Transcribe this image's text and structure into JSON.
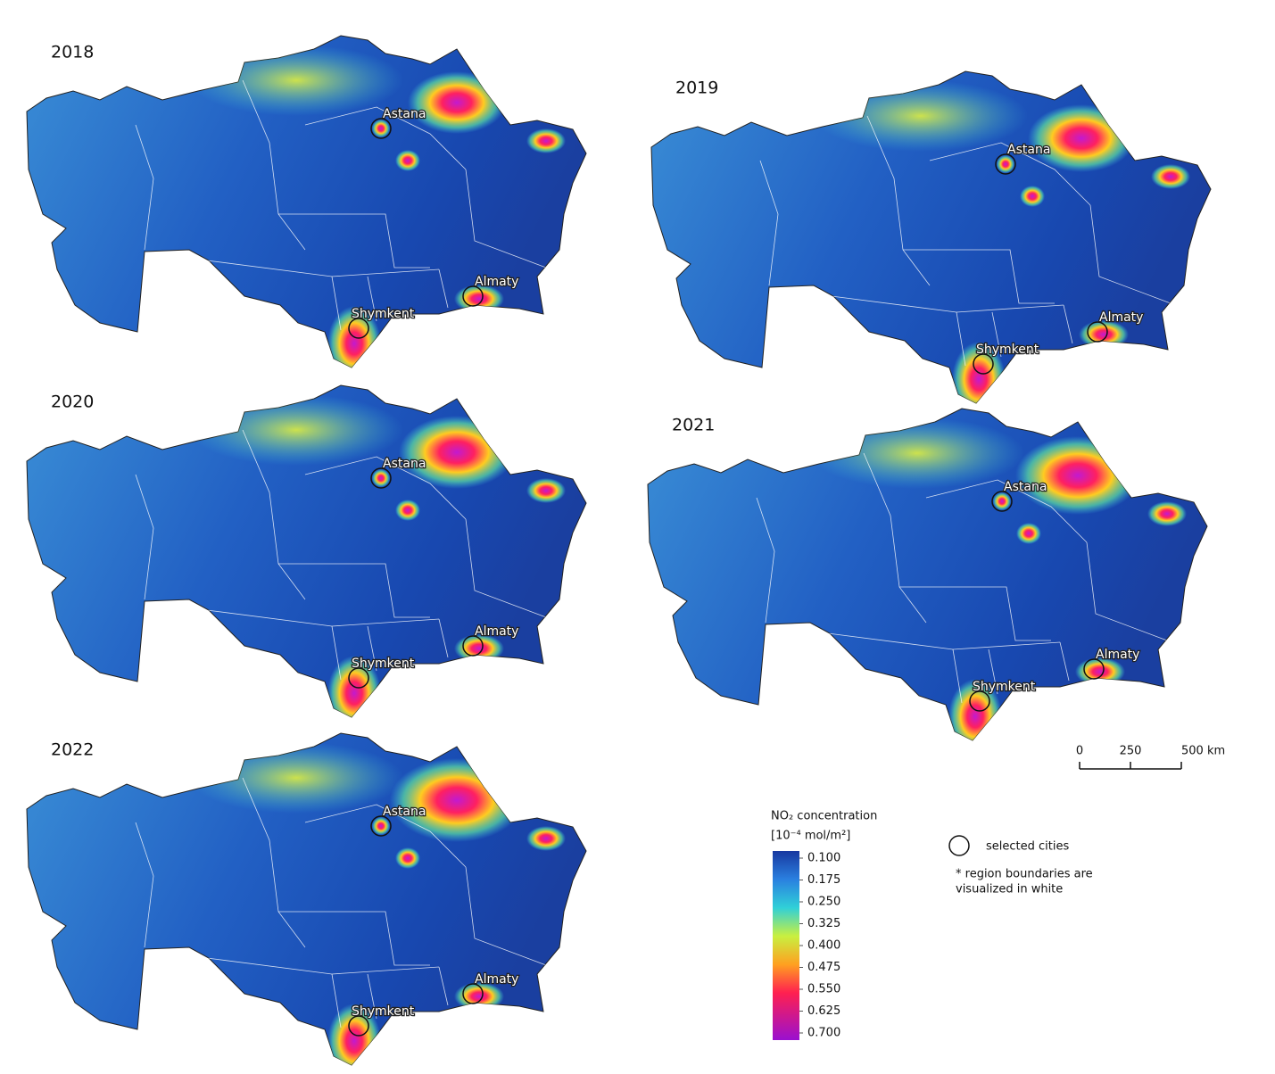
{
  "maps": [
    {
      "year": "2018",
      "cities": [
        "Astana",
        "Almaty",
        "Shymkent"
      ]
    },
    {
      "year": "2019",
      "cities": [
        "Astana",
        "Almaty",
        "Shymkent"
      ]
    },
    {
      "year": "2020",
      "cities": [
        "Astana",
        "Almaty",
        "Shymkent"
      ]
    },
    {
      "year": "2021",
      "cities": [
        "Astana",
        "Almaty",
        "Shymkent"
      ]
    },
    {
      "year": "2022",
      "cities": [
        "Astana",
        "Almaty",
        "Shymkent"
      ]
    }
  ],
  "legend": {
    "title": "NO₂ concentration",
    "unit": "[10⁻⁴ mol/m²]",
    "ticks": [
      {
        "value": 0.1,
        "label": "0.100"
      },
      {
        "value": 0.175,
        "label": "0.175"
      },
      {
        "value": 0.25,
        "label": "0.250"
      },
      {
        "value": 0.325,
        "label": "0.325"
      },
      {
        "value": 0.4,
        "label": "0.400"
      },
      {
        "value": 0.475,
        "label": "0.475"
      },
      {
        "value": 0.55,
        "label": "0.550"
      },
      {
        "value": 0.625,
        "label": "0.625"
      },
      {
        "value": 0.7,
        "label": "0.700"
      }
    ],
    "range": [
      0.1,
      0.7
    ]
  },
  "scale_bar": {
    "ticks": [
      0,
      250,
      {
        "value": 500,
        "label": "500 km"
      }
    ]
  },
  "notes": {
    "cities": "selected cities",
    "boundaries_1": "* region boundaries are",
    "boundaries_2": "visualized in white"
  }
}
